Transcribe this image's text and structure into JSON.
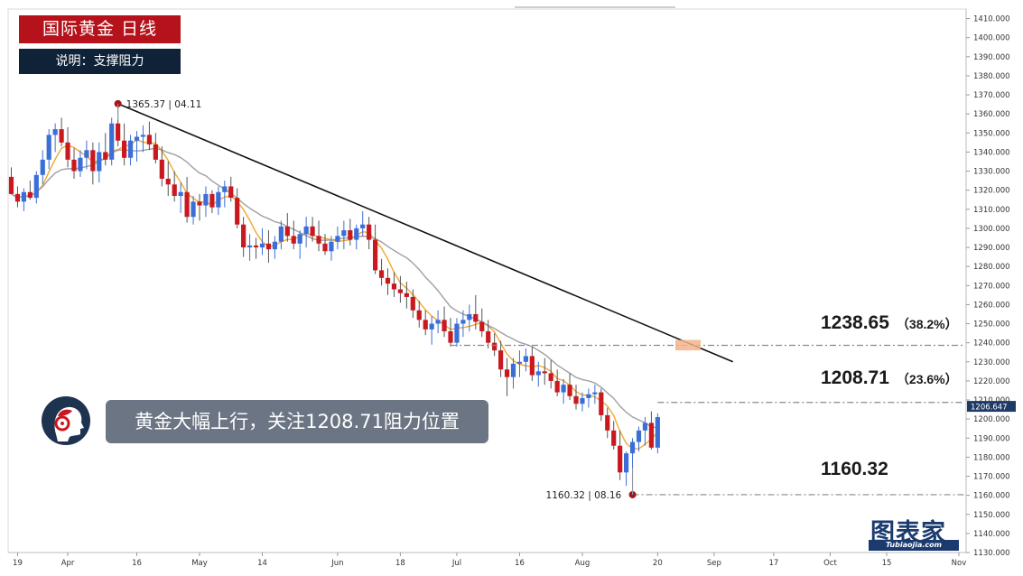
{
  "header": {
    "title": "国际黄金  日线",
    "subtitle": "说明：支撑阻力"
  },
  "banner": {
    "text": "黄金大幅上行，关注1208.71阻力位置"
  },
  "levels": [
    {
      "price": "1238.65",
      "pct": "（38.2%）"
    },
    {
      "price": "1208.71",
      "pct": "（23.6%）"
    },
    {
      "price": "1160.32",
      "pct": ""
    }
  ],
  "logo": {
    "cn": "图表家",
    "en": "Tubiaojia.com"
  },
  "colors": {
    "up": "#3b6fd6",
    "down": "#c9191f",
    "ma_fast": "#f0a830",
    "ma_slow": "#a0a0a0",
    "trend": "#111111",
    "title_bg": "#b5121b",
    "subtitle_bg": "#0f2238",
    "price_tag": "#1e3a66"
  },
  "chart_data": {
    "type": "candlestick",
    "instrument": "国际黄金",
    "timeframe": "日线",
    "ylim": [
      1130,
      1415
    ],
    "y_ticks": [
      1130,
      1140,
      1150,
      1160,
      1170,
      1180,
      1190,
      1200,
      1210,
      1220,
      1230,
      1240,
      1250,
      1260,
      1270,
      1280,
      1290,
      1300,
      1310,
      1320,
      1330,
      1340,
      1350,
      1360,
      1370,
      1380,
      1390,
      1400,
      1410
    ],
    "x_tick_labels": [
      {
        "label": "19",
        "bar": 1
      },
      {
        "label": "Apr",
        "bar": 9
      },
      {
        "label": "16",
        "bar": 20
      },
      {
        "label": "May",
        "bar": 30
      },
      {
        "label": "14",
        "bar": 40
      },
      {
        "label": "Jun",
        "bar": 52
      },
      {
        "label": "18",
        "bar": 62
      },
      {
        "label": "Jul",
        "bar": 71
      },
      {
        "label": "16",
        "bar": 81
      },
      {
        "label": "Aug",
        "bar": 91
      },
      {
        "label": "20",
        "bar": 103
      },
      {
        "label": "Sep",
        "bar": 112
      },
      {
        "label": "17",
        "bar": 121.5
      },
      {
        "label": "Oct",
        "bar": 130.5
      },
      {
        "label": "15",
        "bar": 139.5
      },
      {
        "label": "Nov",
        "bar": 151
      }
    ],
    "last_price": "1206.647",
    "annotations": [
      {
        "text": "1365.37",
        "date": "04.11",
        "price": 1365.37,
        "bar": 17
      },
      {
        "text": "1160.32",
        "date": "08.16",
        "price": 1160.32,
        "bar": 99
      }
    ],
    "trendline": [
      {
        "bar": 17,
        "price": 1365.37
      },
      {
        "bar": 115,
        "price": 1230
      }
    ],
    "fib_levels": [
      {
        "price": 1238.65,
        "pct": "38.2%",
        "from_bar": 70
      },
      {
        "price": 1208.71,
        "pct": "23.6%",
        "from_bar": 103
      },
      {
        "price": 1160.32,
        "pct": "",
        "from_bar": 99
      }
    ],
    "candles": [
      [
        1327,
        1332,
        1318,
        1318
      ],
      [
        1318,
        1322,
        1311,
        1314
      ],
      [
        1314,
        1321,
        1309,
        1319
      ],
      [
        1319,
        1325,
        1315,
        1316
      ],
      [
        1316,
        1330,
        1313,
        1328
      ],
      [
        1328,
        1341,
        1323,
        1336
      ],
      [
        1336,
        1352,
        1331,
        1349
      ],
      [
        1349,
        1355,
        1340,
        1352
      ],
      [
        1352,
        1358,
        1343,
        1345
      ],
      [
        1345,
        1353,
        1332,
        1336
      ],
      [
        1336,
        1342,
        1326,
        1330
      ],
      [
        1330,
        1341,
        1327,
        1337
      ],
      [
        1337,
        1346,
        1331,
        1341
      ],
      [
        1341,
        1345,
        1323,
        1330
      ],
      [
        1330,
        1345,
        1324,
        1340
      ],
      [
        1340,
        1350,
        1333,
        1336
      ],
      [
        1336,
        1358,
        1333,
        1355
      ],
      [
        1355,
        1365,
        1343,
        1346
      ],
      [
        1346,
        1355,
        1333,
        1337
      ],
      [
        1337,
        1349,
        1333,
        1346
      ],
      [
        1346,
        1351,
        1335,
        1348
      ],
      [
        1348,
        1354,
        1340,
        1349
      ],
      [
        1349,
        1356,
        1341,
        1344
      ],
      [
        1344,
        1350,
        1334,
        1336
      ],
      [
        1336,
        1343,
        1322,
        1326
      ],
      [
        1326,
        1335,
        1317,
        1323
      ],
      [
        1323,
        1330,
        1314,
        1317
      ],
      [
        1317,
        1324,
        1308,
        1319
      ],
      [
        1319,
        1327,
        1303,
        1306
      ],
      [
        1306,
        1317,
        1302,
        1314
      ],
      [
        1314,
        1318,
        1304,
        1312
      ],
      [
        1312,
        1322,
        1306,
        1318
      ],
      [
        1318,
        1320,
        1308,
        1311
      ],
      [
        1311,
        1322,
        1307,
        1319
      ],
      [
        1319,
        1325,
        1311,
        1322
      ],
      [
        1322,
        1327,
        1314,
        1316
      ],
      [
        1316,
        1321,
        1300,
        1302
      ],
      [
        1302,
        1306,
        1285,
        1290
      ],
      [
        1290,
        1297,
        1283,
        1291
      ],
      [
        1291,
        1295,
        1284,
        1290
      ],
      [
        1290,
        1300,
        1286,
        1292
      ],
      [
        1292,
        1299,
        1282,
        1289
      ],
      [
        1289,
        1296,
        1284,
        1293
      ],
      [
        1293,
        1304,
        1289,
        1301
      ],
      [
        1301,
        1308,
        1293,
        1296
      ],
      [
        1296,
        1304,
        1289,
        1292
      ],
      [
        1292,
        1299,
        1284,
        1297
      ],
      [
        1297,
        1306,
        1290,
        1301
      ],
      [
        1301,
        1306,
        1293,
        1296
      ],
      [
        1296,
        1304,
        1288,
        1292
      ],
      [
        1292,
        1297,
        1286,
        1288
      ],
      [
        1288,
        1296,
        1283,
        1293
      ],
      [
        1293,
        1301,
        1289,
        1296
      ],
      [
        1296,
        1304,
        1289,
        1299
      ],
      [
        1299,
        1305,
        1291,
        1294
      ],
      [
        1294,
        1302,
        1289,
        1300
      ],
      [
        1300,
        1309,
        1296,
        1302
      ],
      [
        1302,
        1306,
        1289,
        1294
      ],
      [
        1294,
        1302,
        1276,
        1278
      ],
      [
        1278,
        1284,
        1270,
        1274
      ],
      [
        1274,
        1279,
        1265,
        1271
      ],
      [
        1271,
        1277,
        1264,
        1268
      ],
      [
        1268,
        1275,
        1261,
        1266
      ],
      [
        1266,
        1272,
        1258,
        1264
      ],
      [
        1264,
        1268,
        1253,
        1257
      ],
      [
        1257,
        1262,
        1248,
        1252
      ],
      [
        1252,
        1257,
        1244,
        1247
      ],
      [
        1247,
        1254,
        1239,
        1250
      ],
      [
        1250,
        1257,
        1245,
        1252
      ],
      [
        1252,
        1259,
        1243,
        1246
      ],
      [
        1246,
        1253,
        1238,
        1240
      ],
      [
        1240,
        1253,
        1238,
        1250
      ],
      [
        1250,
        1257,
        1243,
        1252
      ],
      [
        1252,
        1260,
        1246,
        1255
      ],
      [
        1255,
        1265,
        1247,
        1251
      ],
      [
        1251,
        1258,
        1243,
        1246
      ],
      [
        1246,
        1252,
        1237,
        1240
      ],
      [
        1240,
        1245,
        1233,
        1236
      ],
      [
        1236,
        1241,
        1222,
        1226
      ],
      [
        1226,
        1232,
        1212,
        1222
      ],
      [
        1222,
        1232,
        1216,
        1229
      ],
      [
        1229,
        1236,
        1222,
        1230
      ],
      [
        1230,
        1237,
        1225,
        1233
      ],
      [
        1233,
        1238,
        1220,
        1223
      ],
      [
        1223,
        1230,
        1217,
        1225
      ],
      [
        1225,
        1232,
        1218,
        1224
      ],
      [
        1224,
        1231,
        1216,
        1220
      ],
      [
        1220,
        1226,
        1212,
        1214
      ],
      [
        1214,
        1221,
        1208,
        1218
      ],
      [
        1218,
        1224,
        1210,
        1212
      ],
      [
        1212,
        1218,
        1205,
        1208
      ],
      [
        1208,
        1214,
        1204,
        1211
      ],
      [
        1211,
        1216,
        1206,
        1213
      ],
      [
        1213,
        1218,
        1208,
        1214
      ],
      [
        1214,
        1216,
        1199,
        1202
      ],
      [
        1202,
        1206,
        1190,
        1194
      ],
      [
        1194,
        1199,
        1184,
        1186
      ],
      [
        1186,
        1194,
        1168,
        1172
      ],
      [
        1172,
        1183,
        1165,
        1182
      ],
      [
        1182,
        1190,
        1160,
        1188
      ],
      [
        1188,
        1196,
        1183,
        1194
      ],
      [
        1194,
        1201,
        1186,
        1198
      ],
      [
        1198,
        1204,
        1184,
        1185
      ],
      [
        1185,
        1203,
        1182,
        1201
      ]
    ]
  }
}
